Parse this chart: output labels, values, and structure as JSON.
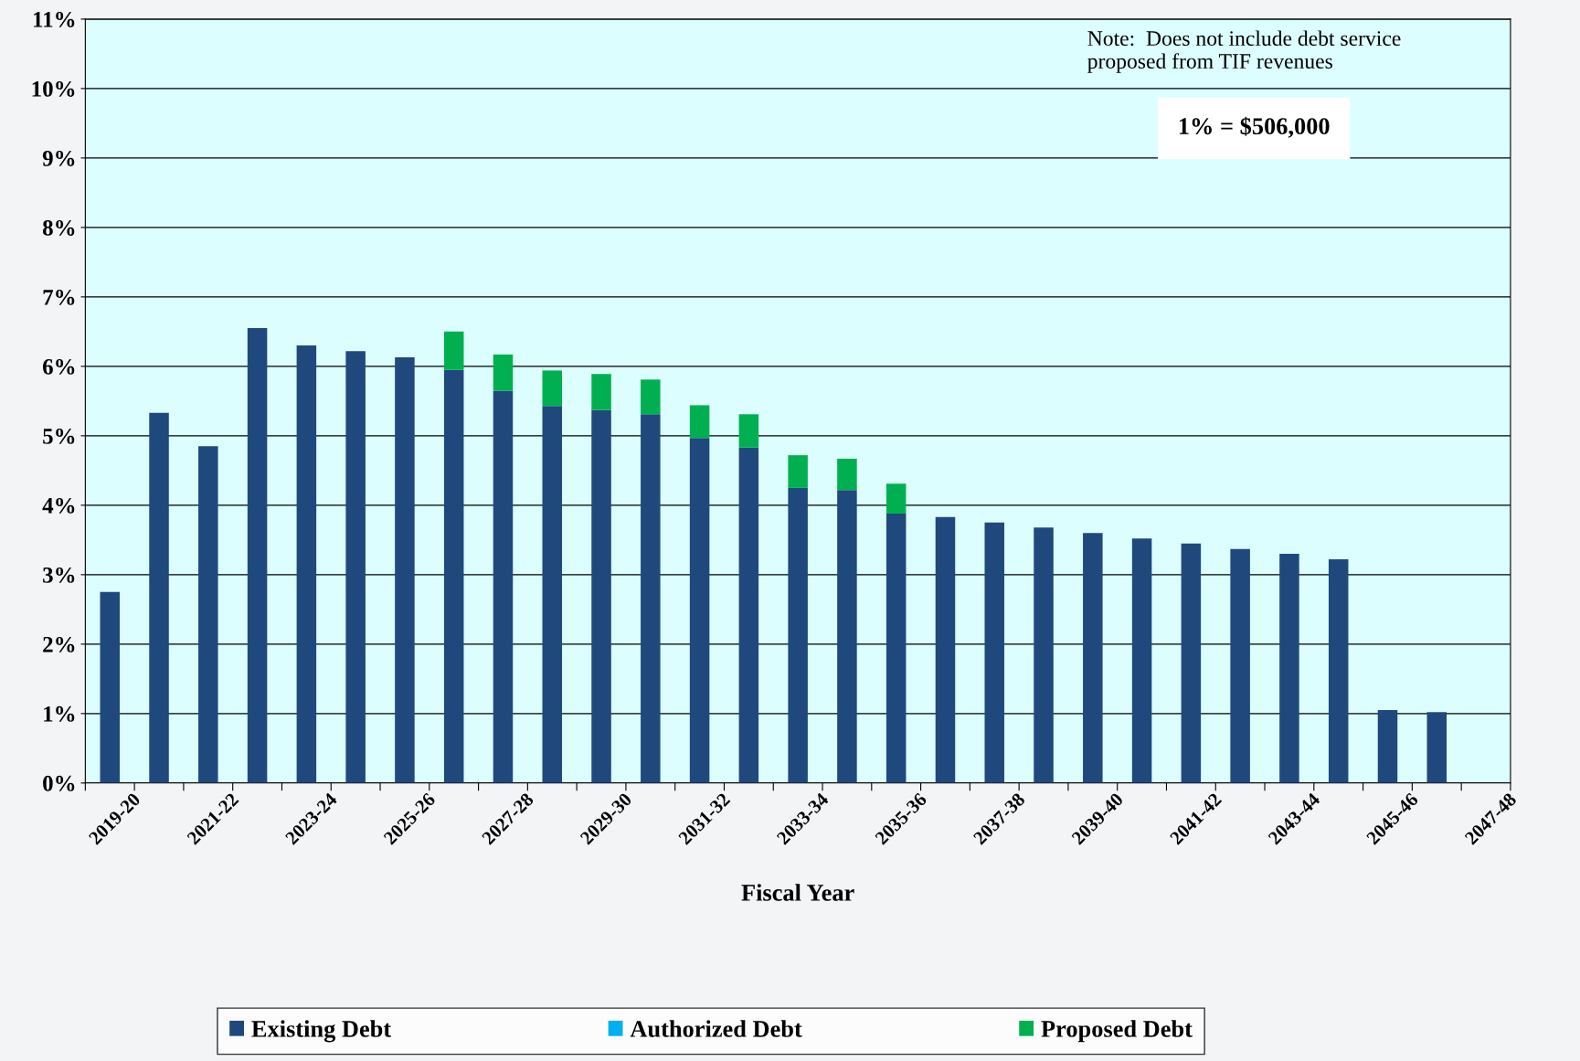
{
  "chart_data": {
    "type": "bar",
    "stacked": true,
    "xlabel": "Fiscal Year",
    "categories": [
      "2019-20",
      null,
      "2021-22",
      null,
      "2023-24",
      null,
      "2025-26",
      null,
      "2027-28",
      null,
      "2029-30",
      null,
      "2031-32",
      null,
      "2033-34",
      null,
      "2035-36",
      null,
      "2037-38",
      null,
      "2039-40",
      null,
      "2041-42",
      null,
      "2043-44",
      null,
      "2045-46",
      null,
      "2047-48"
    ],
    "series": [
      {
        "name": "Existing Debt",
        "color": "#1f497d",
        "values": [
          2.75,
          5.33,
          4.85,
          6.55,
          6.3,
          6.22,
          6.13,
          5.95,
          5.65,
          5.43,
          5.37,
          5.31,
          4.97,
          4.83,
          4.25,
          4.22,
          3.88,
          3.83,
          3.75,
          3.68,
          3.6,
          3.52,
          3.45,
          3.37,
          3.3,
          3.22,
          1.05,
          1.02,
          null
        ]
      },
      {
        "name": "Authorized Debt",
        "color": "#00b0f0",
        "values": [
          null,
          null,
          null,
          null,
          null,
          null,
          null,
          null,
          null,
          null,
          null,
          null,
          null,
          null,
          null,
          null,
          null,
          null,
          null,
          null,
          null,
          null,
          null,
          null,
          null,
          null,
          null,
          null,
          null
        ]
      },
      {
        "name": "Proposed Debt",
        "color": "#00b050",
        "values": [
          null,
          null,
          null,
          null,
          null,
          null,
          null,
          0.55,
          0.52,
          0.51,
          0.52,
          0.5,
          0.47,
          0.48,
          0.47,
          0.45,
          0.43,
          null,
          null,
          null,
          null,
          null,
          null,
          null,
          null,
          null,
          null,
          null,
          null
        ]
      }
    ],
    "ylim": [
      0,
      11
    ],
    "yticks": [
      {
        "value": 0,
        "label": "0%"
      },
      {
        "value": 1,
        "label": "1%"
      },
      {
        "value": 2,
        "label": "2%"
      },
      {
        "value": 3,
        "label": "3%"
      },
      {
        "value": 4,
        "label": "4%"
      },
      {
        "value": 5,
        "label": "5%"
      },
      {
        "value": 6,
        "label": "6%"
      },
      {
        "value": 7,
        "label": "7%"
      },
      {
        "value": 8,
        "label": "8%"
      },
      {
        "value": 9,
        "label": "9%"
      },
      {
        "value": 10,
        "label": "10%"
      },
      {
        "value": 11,
        "label": "11%"
      }
    ],
    "grid": "y",
    "legend": "bottom",
    "annotations": [
      "Note:  Does not include debt service\nproposed from TIF revenues",
      "1% = $506,000"
    ]
  }
}
